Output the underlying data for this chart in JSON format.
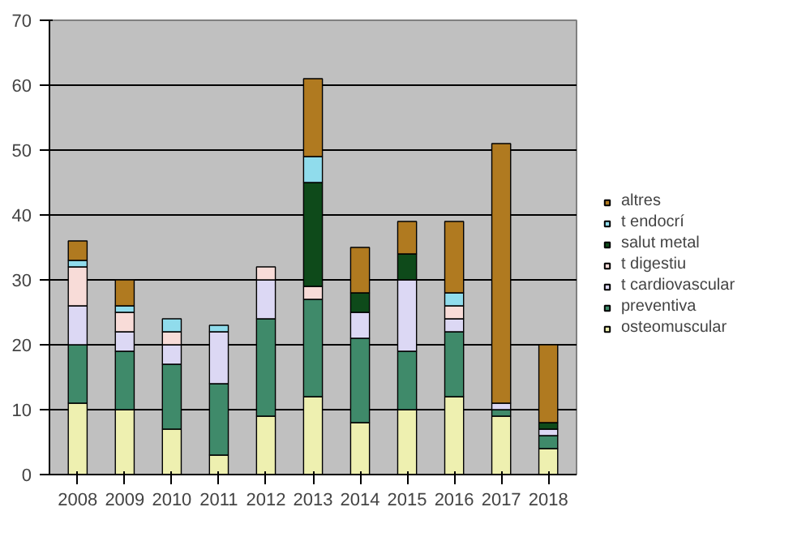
{
  "chart_data": {
    "type": "bar",
    "stacked": true,
    "categories": [
      "2008",
      "2009",
      "2010",
      "2011",
      "2012",
      "2013",
      "2014",
      "2015",
      "2016",
      "2017",
      "2018"
    ],
    "ylim": [
      0,
      70
    ],
    "yticks": [
      0,
      10,
      20,
      30,
      40,
      50,
      60,
      70
    ],
    "grid": "y",
    "legend": "right",
    "series": [
      {
        "name": "osteomuscular",
        "color": "#eef0b0",
        "values": [
          11,
          10,
          7,
          3,
          9,
          12,
          8,
          10,
          12,
          9,
          4
        ]
      },
      {
        "name": "preventiva",
        "color": "#3f8a6a",
        "values": [
          9,
          9,
          10,
          11,
          15,
          15,
          13,
          9,
          10,
          1,
          2
        ]
      },
      {
        "name": "t cardiovascular",
        "color": "#dcd8f4",
        "values": [
          6,
          3,
          3,
          8,
          6,
          0,
          4,
          11,
          2,
          1,
          1
        ]
      },
      {
        "name": "t digestiu",
        "color": "#f8dcd8",
        "values": [
          6,
          3,
          2,
          0,
          2,
          2,
          0,
          0,
          2,
          0,
          0
        ]
      },
      {
        "name": "salut metal",
        "color": "#0e4a1a",
        "values": [
          0,
          0,
          0,
          0,
          0,
          16,
          3,
          4,
          0,
          0,
          1
        ]
      },
      {
        "name": "t endocrí",
        "color": "#90dcec",
        "values": [
          1,
          1,
          2,
          1,
          0,
          4,
          0,
          0,
          2,
          0,
          0
        ]
      },
      {
        "name": "altres",
        "color": "#b07a20",
        "values": [
          3,
          4,
          0,
          0,
          0,
          12,
          7,
          5,
          11,
          40,
          12
        ]
      }
    ]
  }
}
